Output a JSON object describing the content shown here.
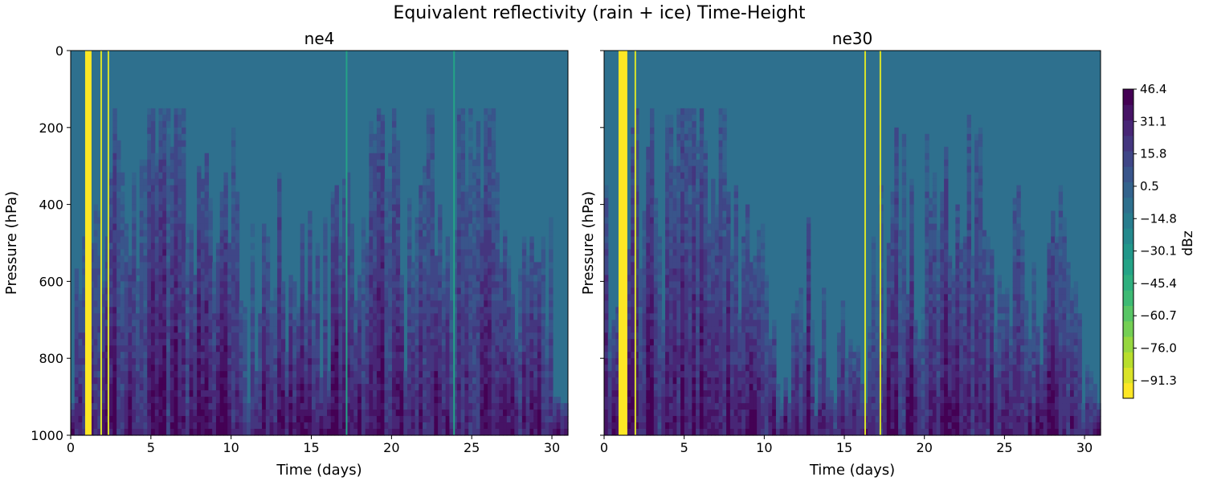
{
  "chart_data": {
    "type": "heatmap",
    "title": "Equivalent reflectivity (rain + ice) Time-Height",
    "panels": [
      {
        "name": "ne4",
        "title": "ne4",
        "xlabel": "Time (days)",
        "ylabel": "Pressure (hPa)",
        "xlim": [
          0,
          31
        ],
        "ylim": [
          1000,
          0
        ],
        "xticks": [
          0,
          5,
          10,
          15,
          20,
          25,
          30
        ],
        "yticks": [
          0,
          200,
          400,
          600,
          800,
          1000
        ],
        "yellow_bands": [
          [
            0.9,
            1.3
          ]
        ],
        "yellow_lines": [
          1.9,
          2.35
        ],
        "green_lines": [
          17.2,
          23.9
        ],
        "seed": 7
      },
      {
        "name": "ne30",
        "title": "ne30",
        "xlabel": "Time (days)",
        "ylabel": "Pressure (hPa)",
        "xlim": [
          0,
          31
        ],
        "ylim": [
          1000,
          0
        ],
        "xticks": [
          0,
          5,
          10,
          15,
          20,
          25,
          30
        ],
        "yticks": [
          0,
          200,
          400,
          600,
          800,
          1000
        ],
        "yellow_bands": [
          [
            0.9,
            1.45
          ]
        ],
        "yellow_lines": [
          1.95,
          16.3,
          17.25
        ],
        "green_lines": [],
        "seed": 31
      }
    ],
    "colorbar": {
      "label": "dBz",
      "ticks": [
        "46.4",
        "31.1",
        "15.8",
        "0.5",
        "−14.8",
        "−30.1",
        "−45.4",
        "−60.7",
        "−76.0",
        "−91.3"
      ],
      "min": -106.6,
      "max": 46.4,
      "levels": 20,
      "colormap": "viridis_r"
    }
  }
}
